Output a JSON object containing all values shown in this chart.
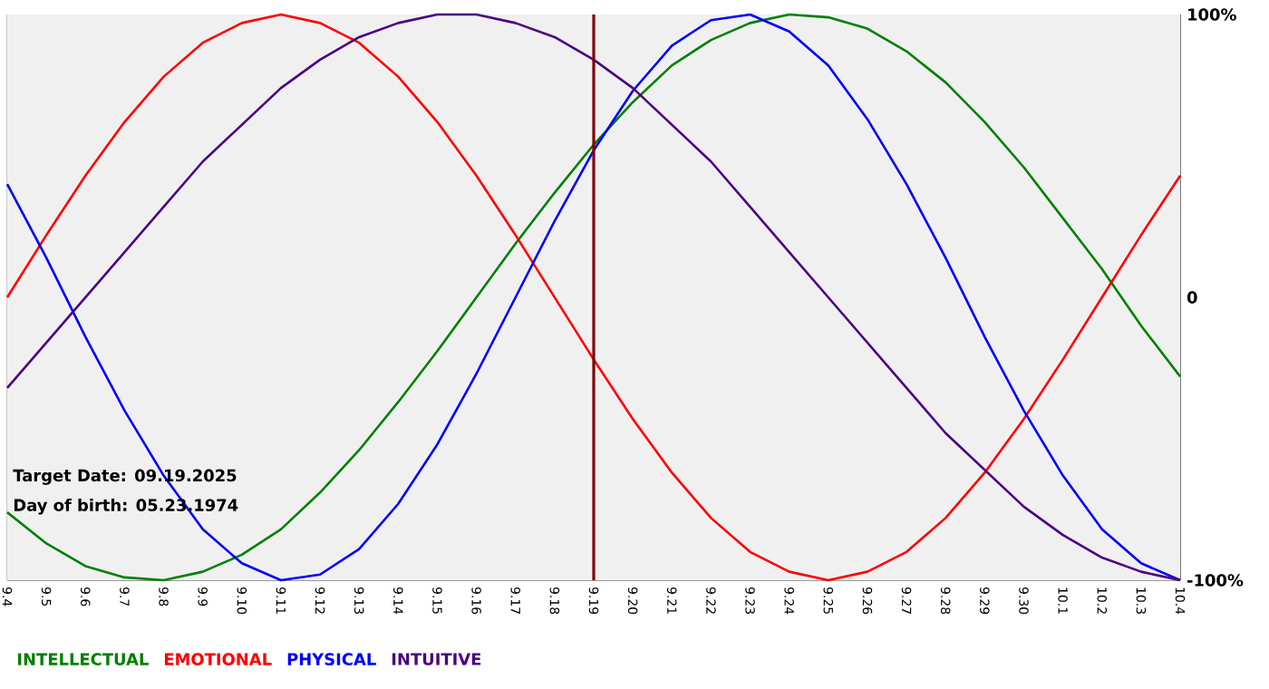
{
  "chart_data": {
    "type": "line",
    "categories": [
      "9.4",
      "9.5",
      "9.6",
      "9.7",
      "9.8",
      "9.9",
      "9.10",
      "9.11",
      "9.12",
      "9.13",
      "9.14",
      "9.15",
      "9.16",
      "9.17",
      "9.18",
      "9.19",
      "9.20",
      "9.21",
      "9.22",
      "9.23",
      "9.24",
      "9.25",
      "9.26",
      "9.27",
      "9.28",
      "9.29",
      "9.30",
      "10.1",
      "10.2",
      "10.3",
      "10.4"
    ],
    "series": [
      {
        "name": "INTELLECTUAL",
        "color": "#008000",
        "values": [
          -76,
          -87,
          -95,
          -99,
          -100,
          -97,
          -91,
          -82,
          -69,
          -54,
          -37,
          -19,
          0,
          19,
          37,
          54,
          69,
          82,
          91,
          97,
          100,
          99,
          95,
          87,
          76,
          62,
          46,
          28,
          10,
          -10,
          -28
        ]
      },
      {
        "name": "EMOTIONAL",
        "color": "#ff0000",
        "values": [
          0,
          22,
          43,
          62,
          78,
          90,
          97,
          100,
          97,
          90,
          78,
          62,
          43,
          22,
          0,
          -22,
          -43,
          -62,
          -78,
          -90,
          -97,
          -100,
          -97,
          -90,
          -78,
          -62,
          -43,
          -22,
          0,
          22,
          43
        ]
      },
      {
        "name": "PHYSICAL",
        "color": "#0000ff",
        "values": [
          40,
          14,
          -14,
          -40,
          -63,
          -82,
          -94,
          -100,
          -98,
          -89,
          -73,
          -52,
          -27,
          0,
          27,
          52,
          73,
          89,
          98,
          100,
          94,
          82,
          63,
          40,
          14,
          -14,
          -40,
          -63,
          -82,
          -94,
          -100
        ]
      },
      {
        "name": "INTUITIVE",
        "color": "#4b0082",
        "values": [
          -32,
          -16,
          0,
          16,
          32,
          48,
          61,
          74,
          84,
          92,
          97,
          100,
          100,
          97,
          92,
          84,
          74,
          61,
          48,
          32,
          16,
          0,
          -16,
          -32,
          -48,
          -61,
          -74,
          -84,
          -92,
          -97,
          -100
        ]
      }
    ],
    "ylim": [
      -100,
      100
    ],
    "yticks": [
      {
        "value": -100,
        "label": "-100%"
      },
      0,
      {
        "value": 100,
        "label": "100%"
      }
    ],
    "grid": "x",
    "legend": "bottom",
    "marker": "none",
    "line_style": "solid",
    "ref_lines": [
      {
        "axis": "x",
        "value": "9.19",
        "color": "#800000"
      }
    ],
    "annotations": [
      "Target Date: 09.19.2025",
      "Day of birth: 05.23.1974"
    ]
  }
}
